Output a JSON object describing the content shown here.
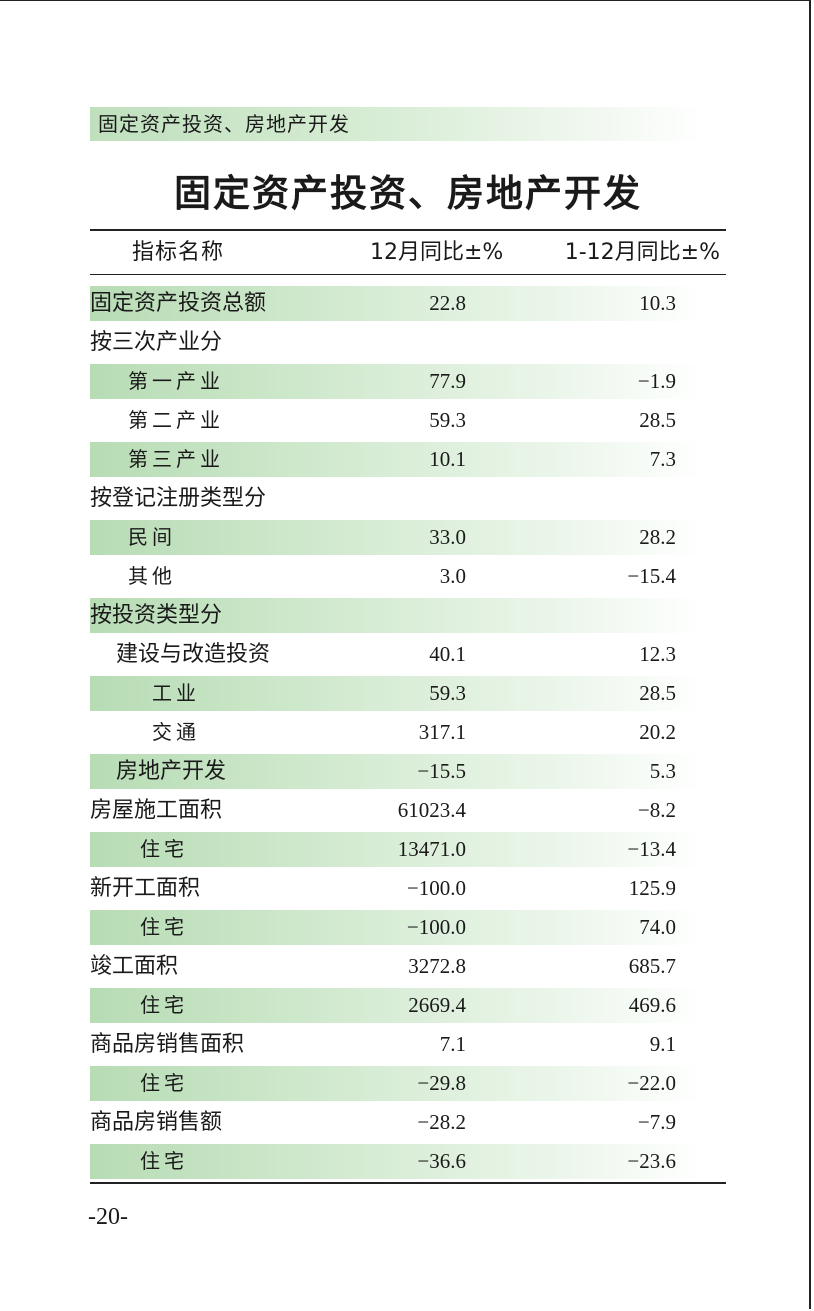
{
  "section_header": "固定资产投资、房地产开发",
  "title": "固定资产投资、房地产开发",
  "columns": {
    "name": "指标名称",
    "col1": "12月同比±%",
    "col2": "1-12月同比±%"
  },
  "rows": [
    {
      "label": "固定资产投资总额",
      "v1": "22.8",
      "v2": "10.3"
    },
    {
      "label": "按三次产业分",
      "v1": "",
      "v2": ""
    },
    {
      "label": "第一产业",
      "v1": "77.9",
      "v2": "−1.9"
    },
    {
      "label": "第二产业",
      "v1": "59.3",
      "v2": "28.5"
    },
    {
      "label": "第三产业",
      "v1": "10.1",
      "v2": "7.3"
    },
    {
      "label": "按登记注册类型分",
      "v1": "",
      "v2": ""
    },
    {
      "label": "民间",
      "v1": "33.0",
      "v2": "28.2"
    },
    {
      "label": "其他",
      "v1": "3.0",
      "v2": "−15.4"
    },
    {
      "label": "按投资类型分",
      "v1": "",
      "v2": ""
    },
    {
      "label": "建设与改造投资",
      "v1": "40.1",
      "v2": "12.3"
    },
    {
      "label": "工业",
      "v1": "59.3",
      "v2": "28.5"
    },
    {
      "label": "交通",
      "v1": "317.1",
      "v2": "20.2"
    },
    {
      "label": "房地产开发",
      "v1": "−15.5",
      "v2": "5.3"
    },
    {
      "label": "房屋施工面积",
      "v1": "61023.4",
      "v2": "−8.2"
    },
    {
      "label": "住宅",
      "v1": "13471.0",
      "v2": "−13.4"
    },
    {
      "label": "新开工面积",
      "v1": "−100.0",
      "v2": "125.9"
    },
    {
      "label": "住宅",
      "v1": "−100.0",
      "v2": "74.0"
    },
    {
      "label": "竣工面积",
      "v1": "3272.8",
      "v2": "685.7"
    },
    {
      "label": "住宅",
      "v1": "2669.4",
      "v2": "469.6"
    },
    {
      "label": "商品房销售面积",
      "v1": "7.1",
      "v2": "9.1"
    },
    {
      "label": "住宅",
      "v1": "−29.8",
      "v2": "−22.0"
    },
    {
      "label": "商品房销售额",
      "v1": "−28.2",
      "v2": "−7.9"
    },
    {
      "label": "住宅",
      "v1": "−36.6",
      "v2": "−23.6"
    }
  ],
  "page_number": "-20-"
}
